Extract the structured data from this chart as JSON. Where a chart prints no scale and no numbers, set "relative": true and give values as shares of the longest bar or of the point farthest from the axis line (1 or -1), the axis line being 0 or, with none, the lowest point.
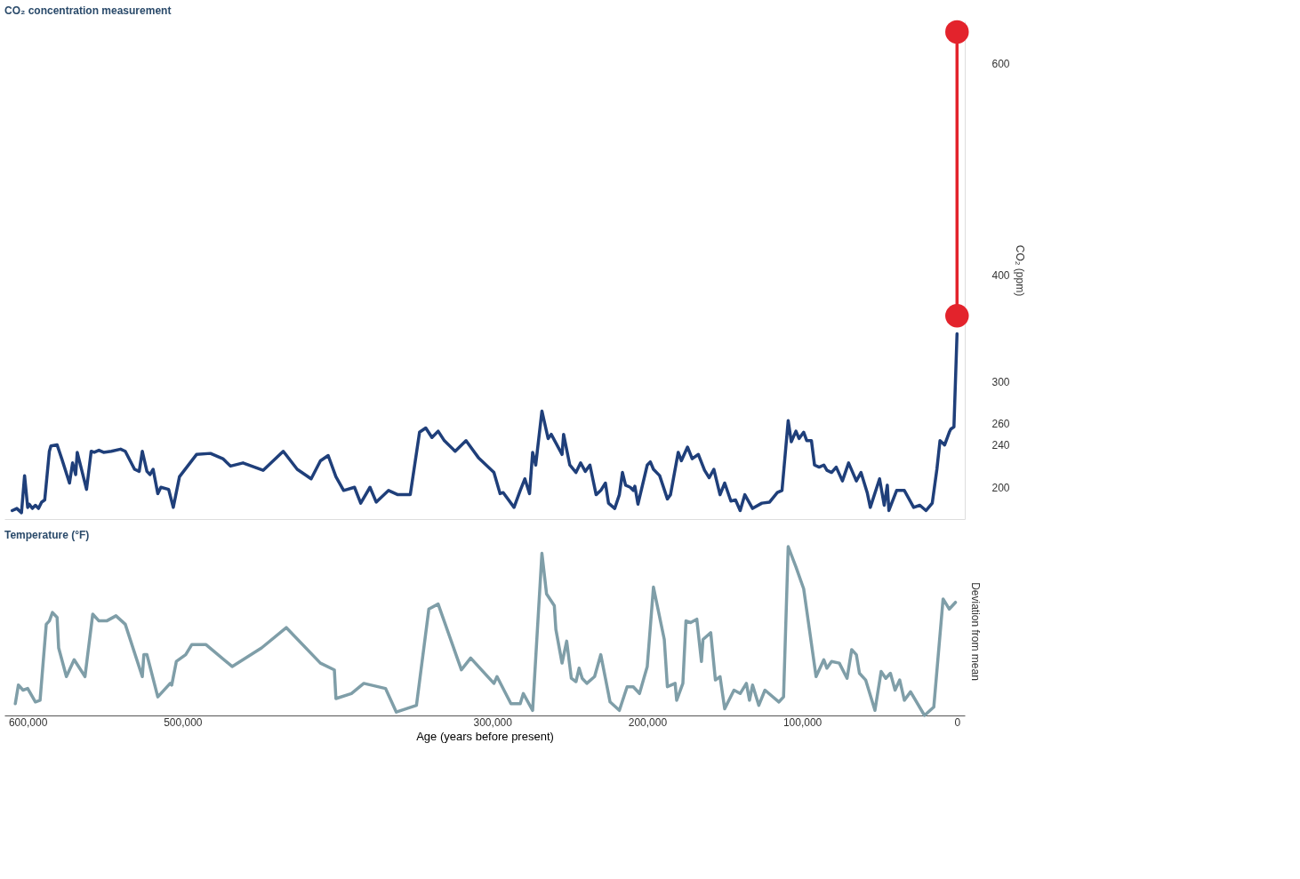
{
  "chart_data": [
    {
      "type": "line",
      "title": "CO₂ concentration measurement",
      "ylabel": "CO₂ (ppm)",
      "xlim": [
        615000,
        -5000
      ],
      "ylim": [
        170,
        640
      ],
      "yticks": [
        200,
        240,
        260,
        300,
        400,
        600
      ],
      "tick_labels": "y",
      "grid": false,
      "series": [
        {
          "color": "#1f3f7a",
          "marker": "none",
          "x": [
            610000,
            607000,
            604000,
            602000,
            600000,
            599000,
            597000,
            595000,
            593000,
            591000,
            589000,
            586000,
            585000,
            581000,
            578000,
            573000,
            571000,
            569000,
            568000,
            562000,
            559000,
            557000,
            554000,
            551000,
            546000,
            540000,
            537000,
            531000,
            528000,
            526000,
            523000,
            521000,
            519000,
            516000,
            514000,
            509000,
            506000,
            502000,
            491000,
            482000,
            474000,
            469000,
            461000,
            448000,
            435000,
            426000,
            417000,
            411000,
            406000,
            401000,
            396000,
            389000,
            385000,
            379000,
            375000,
            367000,
            361000,
            353000,
            347000,
            343000,
            339000,
            335000,
            331000,
            324000,
            317000,
            309000,
            299000,
            295000,
            293000,
            286000,
            282000,
            279000,
            276000,
            274000,
            272000,
            268000,
            264000,
            262000,
            255000,
            254000,
            250000,
            246000,
            243000,
            240000,
            237000,
            233000,
            230000,
            227000,
            225000,
            221000,
            218000,
            216000,
            214000,
            211000,
            209000,
            208000,
            206000,
            200000,
            198000,
            196000,
            192000,
            187000,
            185000,
            180000,
            178000,
            174000,
            171000,
            167000,
            163000,
            160000,
            157000,
            153000,
            150000,
            146000,
            143000,
            140000,
            137000,
            132000,
            126000,
            121000,
            116000,
            113000,
            109000,
            107000,
            104000,
            102000,
            99000,
            97000,
            94000,
            92000,
            89000,
            86000,
            84000,
            81000,
            78000,
            74000,
            70000,
            65000,
            62000,
            58000,
            56000,
            50000,
            47000,
            45000,
            44000,
            39000,
            34000,
            28000,
            24000,
            20000,
            16000,
            13000,
            11000,
            8000,
            5000,
            4000,
            2000,
            0
          ],
          "values": [
            178,
            180,
            176,
            211,
            181,
            184,
            180,
            183,
            180,
            186,
            188,
            234,
            239,
            240,
            227,
            204,
            223,
            212,
            233,
            198,
            234,
            233,
            235,
            233,
            234,
            236,
            234,
            217,
            215,
            234,
            215,
            212,
            217,
            194,
            200,
            198,
            181,
            210,
            231,
            232,
            227,
            220,
            223,
            216,
            234,
            217,
            208,
            225,
            230,
            210,
            197,
            200,
            185,
            200,
            186,
            197,
            193,
            193,
            252,
            256,
            247,
            253,
            244,
            234,
            244,
            228,
            214,
            194,
            195,
            181,
            197,
            208,
            194,
            233,
            221,
            272,
            246,
            250,
            231,
            250,
            221,
            214,
            223,
            215,
            221,
            193,
            197,
            204,
            185,
            180,
            193,
            214,
            202,
            200,
            197,
            201,
            184,
            221,
            224,
            217,
            211,
            189,
            193,
            233,
            225,
            238,
            227,
            231,
            216,
            209,
            217,
            193,
            204,
            187,
            188,
            178,
            193,
            180,
            185,
            186,
            195,
            197,
            263,
            243,
            253,
            246,
            252,
            244,
            244,
            221,
            219,
            221,
            216,
            214,
            219,
            206,
            223,
            206,
            214,
            195,
            181,
            208,
            183,
            202,
            178,
            197,
            197,
            181,
            183,
            178,
            185,
            217,
            244,
            240,
            252,
            255,
            257,
            345
          ]
        },
        {
          "color": "#e3232c",
          "marker": "circle",
          "x": [
            0,
            0
          ],
          "values": [
            362,
            630
          ]
        }
      ]
    },
    {
      "type": "line",
      "relative": true,
      "title": "Temperature (°F)",
      "ylabel": "Deviation from mean",
      "xlabel": "Age (years before present)",
      "xlim": [
        615000,
        -5000
      ],
      "xticks": [
        {
          "value": 600000,
          "label": "600,000"
        },
        {
          "value": 500000,
          "label": "500,000"
        },
        {
          "value": 300000,
          "label": "300,000"
        },
        {
          "value": 200000,
          "label": "200,000"
        },
        {
          "value": 100000,
          "label": "100,000"
        },
        0
      ],
      "tick_labels": "x",
      "grid": false,
      "series": [
        {
          "color": "#7f9ea8",
          "marker": "none",
          "x": [
            608000,
            606000,
            603000,
            600000,
            595000,
            592000,
            588000,
            586000,
            584000,
            581000,
            580000,
            575000,
            570000,
            563000,
            558000,
            554000,
            549000,
            543000,
            537000,
            526000,
            525000,
            523000,
            516000,
            508000,
            507000,
            504000,
            498000,
            494000,
            485000,
            468000,
            449000,
            433000,
            411000,
            402000,
            401000,
            391000,
            383000,
            369000,
            362000,
            349000,
            341000,
            335000,
            320000,
            314000,
            299000,
            297000,
            288000,
            282000,
            280000,
            274000,
            268000,
            265000,
            260000,
            259000,
            255000,
            252000,
            249000,
            246000,
            244000,
            242000,
            239000,
            234000,
            230000,
            224000,
            218000,
            213000,
            209000,
            205000,
            200000,
            196000,
            189000,
            187000,
            182000,
            181000,
            177000,
            175000,
            172000,
            168000,
            165000,
            164000,
            159000,
            156000,
            153000,
            150000,
            144000,
            140000,
            136000,
            134000,
            132000,
            128000,
            124000,
            115000,
            112000,
            109000,
            104000,
            99000,
            91000,
            86000,
            84000,
            81000,
            76000,
            71000,
            68000,
            65000,
            63000,
            59000,
            53000,
            49000,
            46000,
            43000,
            40000,
            37000,
            34000,
            30000,
            21000,
            15000,
            9000,
            5000,
            1000
          ],
          "values": [
            0.07,
            0.18,
            0.15,
            0.16,
            0.08,
            0.09,
            0.54,
            0.56,
            0.61,
            0.58,
            0.4,
            0.23,
            0.33,
            0.23,
            0.6,
            0.56,
            0.56,
            0.59,
            0.54,
            0.23,
            0.36,
            0.36,
            0.11,
            0.19,
            0.18,
            0.32,
            0.36,
            0.42,
            0.42,
            0.29,
            0.4,
            0.52,
            0.31,
            0.27,
            0.1,
            0.13,
            0.19,
            0.16,
            0.02,
            0.06,
            0.63,
            0.66,
            0.27,
            0.34,
            0.19,
            0.23,
            0.07,
            0.07,
            0.13,
            0.03,
            0.96,
            0.72,
            0.65,
            0.51,
            0.31,
            0.44,
            0.22,
            0.2,
            0.28,
            0.22,
            0.19,
            0.23,
            0.36,
            0.08,
            0.03,
            0.17,
            0.17,
            0.13,
            0.29,
            0.76,
            0.45,
            0.17,
            0.19,
            0.09,
            0.19,
            0.56,
            0.55,
            0.57,
            0.32,
            0.45,
            0.49,
            0.21,
            0.23,
            0.04,
            0.15,
            0.13,
            0.19,
            0.09,
            0.18,
            0.06,
            0.15,
            0.08,
            0.11,
            1.0,
            0.88,
            0.75,
            0.23,
            0.33,
            0.28,
            0.32,
            0.31,
            0.22,
            0.39,
            0.36,
            0.25,
            0.21,
            0.03,
            0.26,
            0.22,
            0.25,
            0.15,
            0.21,
            0.09,
            0.14,
            0.0,
            0.05,
            0.69,
            0.63,
            0.67
          ]
        }
      ]
    }
  ]
}
